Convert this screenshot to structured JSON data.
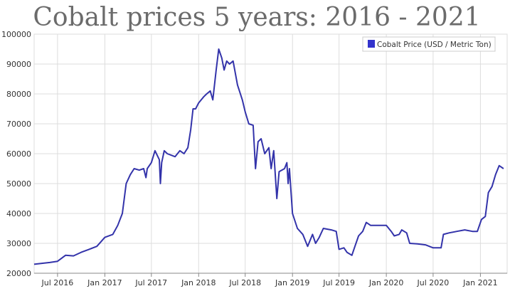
{
  "colors": {
    "series": "#3333aa",
    "grid": "#dddddd",
    "axis": "#888888",
    "title": "#6b6b6b",
    "legend_swatch": "#3333cc"
  },
  "chart_data": {
    "type": "line",
    "title": "Cobalt prices 5 years: 2016 - 2021",
    "xlabel": "",
    "ylabel": "",
    "x_range": [
      "2016-04-01",
      "2021-04-15"
    ],
    "ylim": [
      20000,
      100000
    ],
    "yticks": [
      20000,
      30000,
      40000,
      50000,
      60000,
      70000,
      80000,
      90000,
      100000
    ],
    "ytick_labels": [
      "20000",
      "30000",
      "40000",
      "50000",
      "60000",
      "70000",
      "80000",
      "90000",
      "100000"
    ],
    "xticks": [
      {
        "date": "2016-07-01",
        "label": "Jul 2016"
      },
      {
        "date": "2017-01-01",
        "label": "Jan 2017"
      },
      {
        "date": "2017-07-01",
        "label": "Jul 2017"
      },
      {
        "date": "2018-01-01",
        "label": "Jan 2018"
      },
      {
        "date": "2018-07-01",
        "label": "Jul 2018"
      },
      {
        "date": "2019-01-01",
        "label": "Jan 2019"
      },
      {
        "date": "2019-07-01",
        "label": "Jul 2019"
      },
      {
        "date": "2020-01-01",
        "label": "Jan 2020"
      },
      {
        "date": "2020-07-01",
        "label": "Jul 2020"
      },
      {
        "date": "2021-01-01",
        "label": "Jan 2021"
      }
    ],
    "grid": true,
    "legend": "top-right",
    "series": [
      {
        "name": "Cobalt Price (USD / Metric Ton)",
        "points": [
          [
            "2016-04-01",
            23000
          ],
          [
            "2016-05-01",
            23300
          ],
          [
            "2016-06-01",
            23600
          ],
          [
            "2016-07-01",
            24000
          ],
          [
            "2016-08-01",
            26000
          ],
          [
            "2016-09-01",
            25800
          ],
          [
            "2016-10-01",
            27000
          ],
          [
            "2016-11-01",
            28000
          ],
          [
            "2016-12-01",
            29000
          ],
          [
            "2017-01-01",
            32000
          ],
          [
            "2017-02-01",
            33000
          ],
          [
            "2017-02-20",
            36000
          ],
          [
            "2017-03-10",
            40000
          ],
          [
            "2017-03-25",
            50000
          ],
          [
            "2017-04-10",
            53000
          ],
          [
            "2017-04-25",
            55000
          ],
          [
            "2017-05-15",
            54500
          ],
          [
            "2017-06-01",
            55000
          ],
          [
            "2017-06-10",
            52000
          ],
          [
            "2017-06-15",
            55000
          ],
          [
            "2017-07-01",
            57000
          ],
          [
            "2017-07-15",
            61000
          ],
          [
            "2017-08-01",
            58000
          ],
          [
            "2017-08-05",
            50000
          ],
          [
            "2017-08-10",
            57000
          ],
          [
            "2017-08-20",
            61000
          ],
          [
            "2017-09-01",
            60000
          ],
          [
            "2017-10-01",
            59000
          ],
          [
            "2017-10-20",
            61000
          ],
          [
            "2017-11-05",
            60000
          ],
          [
            "2017-11-20",
            62000
          ],
          [
            "2017-12-01",
            68000
          ],
          [
            "2017-12-10",
            75000
          ],
          [
            "2017-12-20",
            75000
          ],
          [
            "2018-01-01",
            77000
          ],
          [
            "2018-01-20",
            79000
          ],
          [
            "2018-02-01",
            80000
          ],
          [
            "2018-02-15",
            81000
          ],
          [
            "2018-02-25",
            78000
          ],
          [
            "2018-03-10",
            88000
          ],
          [
            "2018-03-20",
            95000
          ],
          [
            "2018-04-01",
            92000
          ],
          [
            "2018-04-10",
            88000
          ],
          [
            "2018-04-20",
            91000
          ],
          [
            "2018-05-01",
            90000
          ],
          [
            "2018-05-15",
            91000
          ],
          [
            "2018-06-01",
            83000
          ],
          [
            "2018-06-20",
            78000
          ],
          [
            "2018-07-01",
            74000
          ],
          [
            "2018-07-15",
            70000
          ],
          [
            "2018-08-01",
            69500
          ],
          [
            "2018-08-10",
            55000
          ],
          [
            "2018-08-20",
            64000
          ],
          [
            "2018-09-01",
            65000
          ],
          [
            "2018-09-15",
            60000
          ],
          [
            "2018-10-01",
            62000
          ],
          [
            "2018-10-10",
            55000
          ],
          [
            "2018-10-20",
            61000
          ],
          [
            "2018-11-01",
            45000
          ],
          [
            "2018-11-10",
            54000
          ],
          [
            "2018-12-01",
            55000
          ],
          [
            "2018-12-10",
            57000
          ],
          [
            "2018-12-15",
            50000
          ],
          [
            "2018-12-20",
            55000
          ],
          [
            "2019-01-01",
            40000
          ],
          [
            "2019-01-20",
            35000
          ],
          [
            "2019-02-10",
            33000
          ],
          [
            "2019-03-01",
            29000
          ],
          [
            "2019-03-20",
            33000
          ],
          [
            "2019-04-01",
            30000
          ],
          [
            "2019-04-15",
            32000
          ],
          [
            "2019-05-01",
            35000
          ],
          [
            "2019-06-01",
            34500
          ],
          [
            "2019-06-20",
            34000
          ],
          [
            "2019-07-01",
            28000
          ],
          [
            "2019-07-20",
            28500
          ],
          [
            "2019-08-01",
            27000
          ],
          [
            "2019-08-20",
            26000
          ],
          [
            "2019-09-01",
            29000
          ],
          [
            "2019-09-15",
            32500
          ],
          [
            "2019-10-01",
            34000
          ],
          [
            "2019-10-15",
            37000
          ],
          [
            "2019-11-01",
            36000
          ],
          [
            "2019-12-01",
            36000
          ],
          [
            "2020-01-01",
            36000
          ],
          [
            "2020-01-20",
            34000
          ],
          [
            "2020-02-01",
            32500
          ],
          [
            "2020-02-20",
            33000
          ],
          [
            "2020-03-01",
            34500
          ],
          [
            "2020-03-20",
            33500
          ],
          [
            "2020-04-01",
            30000
          ],
          [
            "2020-05-01",
            29800
          ],
          [
            "2020-06-01",
            29500
          ],
          [
            "2020-07-01",
            28500
          ],
          [
            "2020-08-01",
            28500
          ],
          [
            "2020-08-10",
            33000
          ],
          [
            "2020-09-01",
            33500
          ],
          [
            "2020-10-01",
            34000
          ],
          [
            "2020-11-01",
            34500
          ],
          [
            "2020-12-01",
            34000
          ],
          [
            "2020-12-20",
            34000
          ],
          [
            "2021-01-05",
            38000
          ],
          [
            "2021-01-20",
            39000
          ],
          [
            "2021-02-01",
            47000
          ],
          [
            "2021-02-15",
            49000
          ],
          [
            "2021-03-01",
            53000
          ],
          [
            "2021-03-15",
            56000
          ],
          [
            "2021-04-01",
            55000
          ]
        ]
      }
    ]
  }
}
